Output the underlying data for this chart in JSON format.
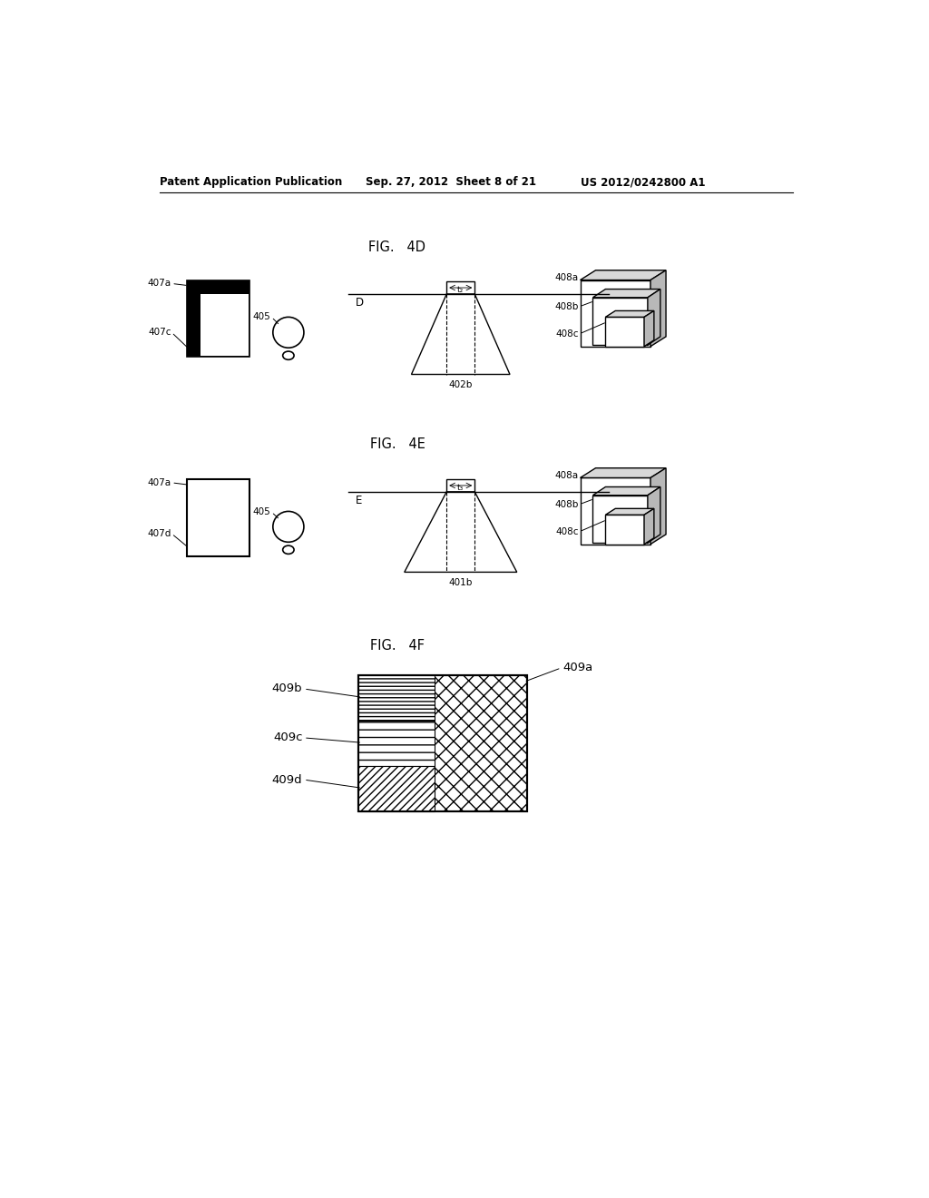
{
  "header_left": "Patent Application Publication",
  "header_center": "Sep. 27, 2012  Sheet 8 of 21",
  "header_right": "US 2012/0242800 A1",
  "fig4d_title": "FIG.   4D",
  "fig4e_title": "FIG.   4E",
  "fig4f_title": "FIG.   4F",
  "bg_color": "#ffffff",
  "line_color": "#000000",
  "label_fontsize": 7.5,
  "header_fontsize": 8.5,
  "fig_title_fontsize": 10.5
}
